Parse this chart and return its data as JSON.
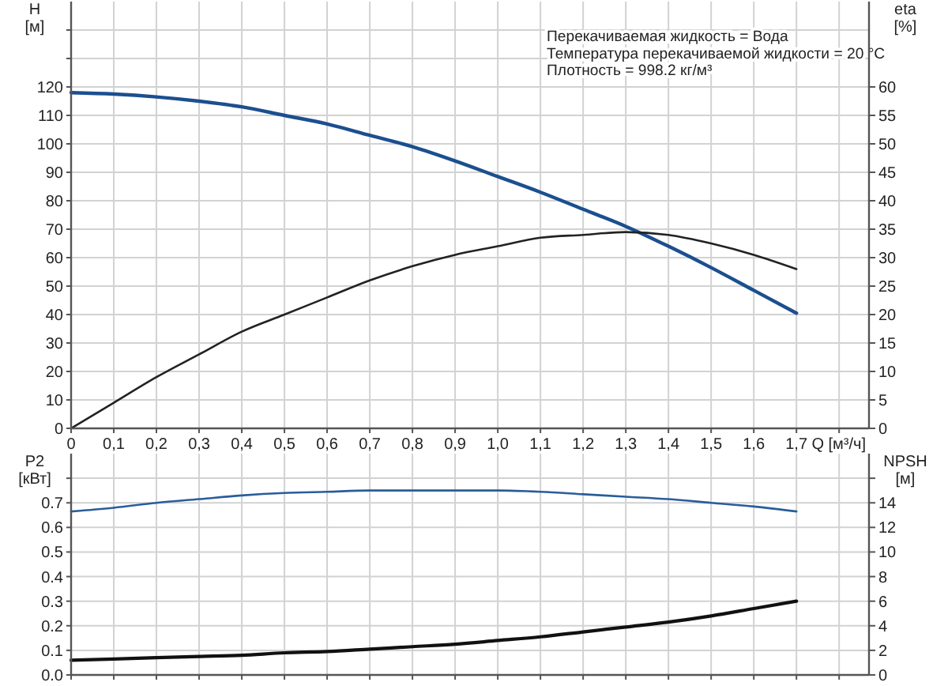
{
  "chart_data": [
    {
      "type": "line",
      "xlabel": "Q [м³/ч]",
      "ylabel": "H\n[м]",
      "y2label": "eta\n[%]",
      "x": [
        0,
        0.1,
        0.2,
        0.3,
        0.4,
        0.5,
        0.6,
        0.7,
        0.8,
        0.9,
        1.0,
        1.1,
        1.2,
        1.3,
        1.4,
        1.5,
        1.6,
        1.7
      ],
      "series": [
        {
          "color": "#1b4f8f",
          "values": [
            118,
            117.5,
            116.5,
            115,
            113,
            110,
            107,
            103,
            99,
            94,
            88.5,
            83,
            77,
            71,
            64,
            56.5,
            48.5,
            40.5
          ]
        },
        {
          "color": "#222222",
          "axis": "y2",
          "values": [
            0,
            4.5,
            9,
            13,
            17,
            20,
            23,
            26,
            28.5,
            30.5,
            32,
            33.5,
            34,
            34.5,
            34,
            32.5,
            30.5,
            28
          ]
        }
      ],
      "xlim": [
        0,
        1.87
      ],
      "xticks": [
        0,
        {
          "value": 0.1,
          "label": "0,1"
        },
        {
          "value": 0.2,
          "label": "0,2"
        },
        {
          "value": 0.3,
          "label": "0,3"
        },
        {
          "value": 0.4,
          "label": "0,4"
        },
        {
          "value": 0.5,
          "label": "0,5"
        },
        {
          "value": 0.6,
          "label": "0,6"
        },
        {
          "value": 0.7,
          "label": "0,7"
        },
        {
          "value": 0.8,
          "label": "0,8"
        },
        {
          "value": 0.9,
          "label": "0,9"
        },
        {
          "value": 1.0,
          "label": "1,0"
        },
        {
          "value": 1.1,
          "label": "1,1"
        },
        {
          "value": 1.2,
          "label": "1,2"
        },
        {
          "value": 1.3,
          "label": "1,3"
        },
        {
          "value": 1.4,
          "label": "1,4"
        },
        {
          "value": 1.5,
          "label": "1,5"
        },
        {
          "value": 1.6,
          "label": "1,6"
        },
        {
          "value": 1.7,
          "label": "1,7"
        },
        {
          "value": 1.8,
          "label": null
        }
      ],
      "ylim": [
        0,
        150
      ],
      "yticks": [
        0,
        10,
        20,
        30,
        40,
        50,
        60,
        70,
        80,
        90,
        100,
        110,
        120,
        {
          "value": 130,
          "label": null
        },
        {
          "value": 140,
          "label": null
        }
      ],
      "y2lim": [
        0,
        75
      ],
      "y2ticks": [
        0,
        5,
        10,
        15,
        20,
        25,
        30,
        35,
        40,
        45,
        50,
        55,
        60
      ],
      "grid": true,
      "annotations": [
        "Перекачиваемая жидкость = Вода",
        "Температура перекачиваемой жидкости = 20 °C",
        "Плотность = 998.2 кг/м³"
      ]
    },
    {
      "type": "line",
      "ylabel": "P2\n[кВт]",
      "y2label": "NPSH\n[м]",
      "x": [
        0,
        0.1,
        0.2,
        0.3,
        0.4,
        0.5,
        0.6,
        0.7,
        0.8,
        0.9,
        1.0,
        1.1,
        1.2,
        1.3,
        1.4,
        1.5,
        1.6,
        1.7
      ],
      "series": [
        {
          "color": "#2a5d9a",
          "values": [
            0.665,
            0.68,
            0.7,
            0.715,
            0.73,
            0.74,
            0.745,
            0.75,
            0.75,
            0.75,
            0.75,
            0.745,
            0.735,
            0.725,
            0.715,
            0.7,
            0.685,
            0.665
          ]
        },
        {
          "color": "#111111",
          "axis": "y2",
          "values": [
            1.2,
            1.3,
            1.4,
            1.5,
            1.6,
            1.8,
            1.9,
            2.1,
            2.3,
            2.5,
            2.8,
            3.1,
            3.5,
            3.9,
            4.3,
            4.8,
            5.4,
            6
          ]
        }
      ],
      "xlim": [
        0,
        1.87
      ],
      "xticks": [
        0,
        0.1,
        0.2,
        0.3,
        0.4,
        0.5,
        0.6,
        0.7,
        0.8,
        0.9,
        1.0,
        1.1,
        1.2,
        1.3,
        1.4,
        1.5,
        1.6,
        1.7,
        1.8
      ],
      "ylim": [
        0,
        0.9
      ],
      "yticks": [
        {
          "value": 0,
          "label": "0.0"
        },
        0.1,
        0.2,
        0.3,
        0.4,
        0.5,
        0.6,
        0.7,
        {
          "value": 0.8,
          "label": null
        }
      ],
      "y2lim": [
        0,
        18
      ],
      "y2ticks": [
        0,
        2,
        4,
        6,
        8,
        10,
        12,
        14,
        {
          "value": 16,
          "label": null
        }
      ],
      "grid": true,
      "tick_labels": "y"
    }
  ]
}
